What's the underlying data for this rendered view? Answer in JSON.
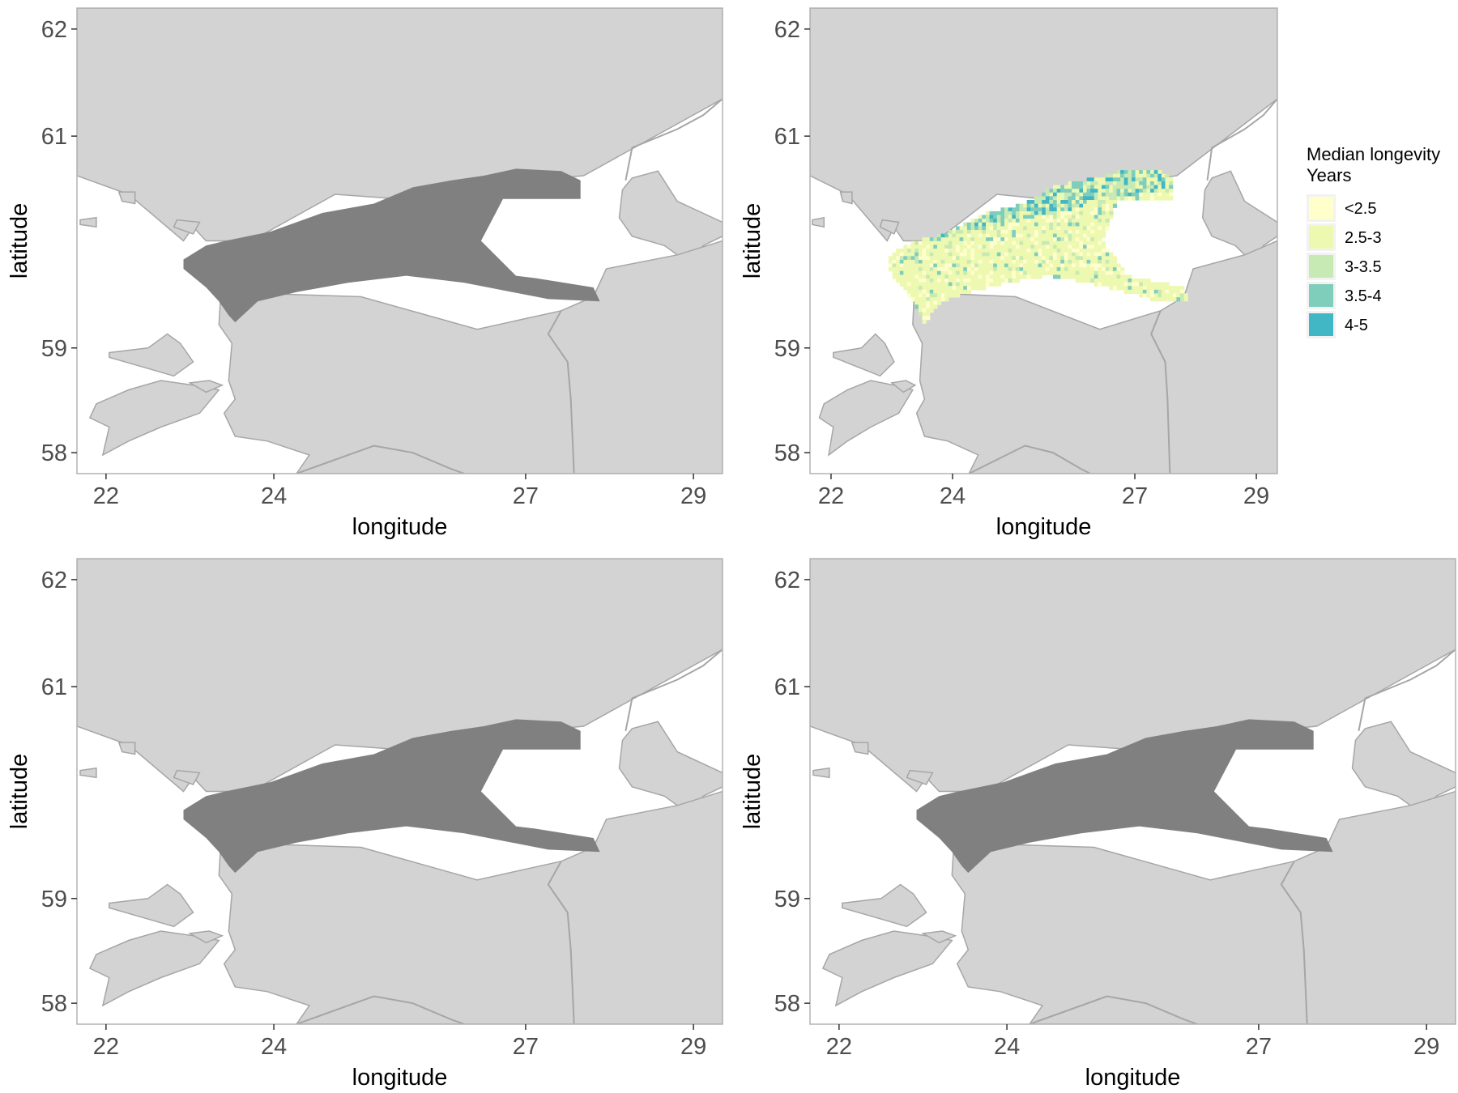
{
  "figure": {
    "panels": [
      {
        "id": "top-left",
        "xlabel": "longitude",
        "ylabel": "latitude",
        "xticks": [
          "22",
          "24",
          "27",
          "29"
        ],
        "yticks": [
          "62",
          "61",
          "59",
          "58"
        ],
        "fill": "gray"
      },
      {
        "id": "top-right",
        "xlabel": "longitude",
        "ylabel": "latitude",
        "xticks": [
          "22",
          "24",
          "27",
          "29"
        ],
        "yticks": [
          "62",
          "61",
          "59",
          "58"
        ],
        "fill": "longevity"
      },
      {
        "id": "bottom-left",
        "xlabel": "longitude",
        "ylabel": "latitude",
        "xticks": [
          "22",
          "24",
          "27",
          "29"
        ],
        "yticks": [
          "62",
          "61",
          "59",
          "58"
        ],
        "fill": "gray"
      },
      {
        "id": "bottom-right",
        "xlabel": "longitude",
        "ylabel": "latitude",
        "xticks": [
          "22",
          "24",
          "27",
          "29"
        ],
        "yticks": [
          "62",
          "61",
          "59",
          "58"
        ],
        "fill": "gray"
      }
    ],
    "legend": {
      "title_line1": "Median longevity",
      "title_line2": " Years",
      "items": [
        {
          "label": "<2.5",
          "color": "#FFFFCC"
        },
        {
          "label": "2.5-3",
          "color": "#EDF8B1"
        },
        {
          "label": "3-3.5",
          "color": "#C7E9B4"
        },
        {
          "label": "3.5-4",
          "color": "#7FCDBB"
        },
        {
          "label": "4-5",
          "color": "#41B6C4"
        }
      ]
    },
    "colors": {
      "land": "#d3d3d3",
      "coast": "#a6a6a6",
      "sea": "#ffffff",
      "region": "#808080",
      "panel_border": "#b3b3b3"
    }
  }
}
